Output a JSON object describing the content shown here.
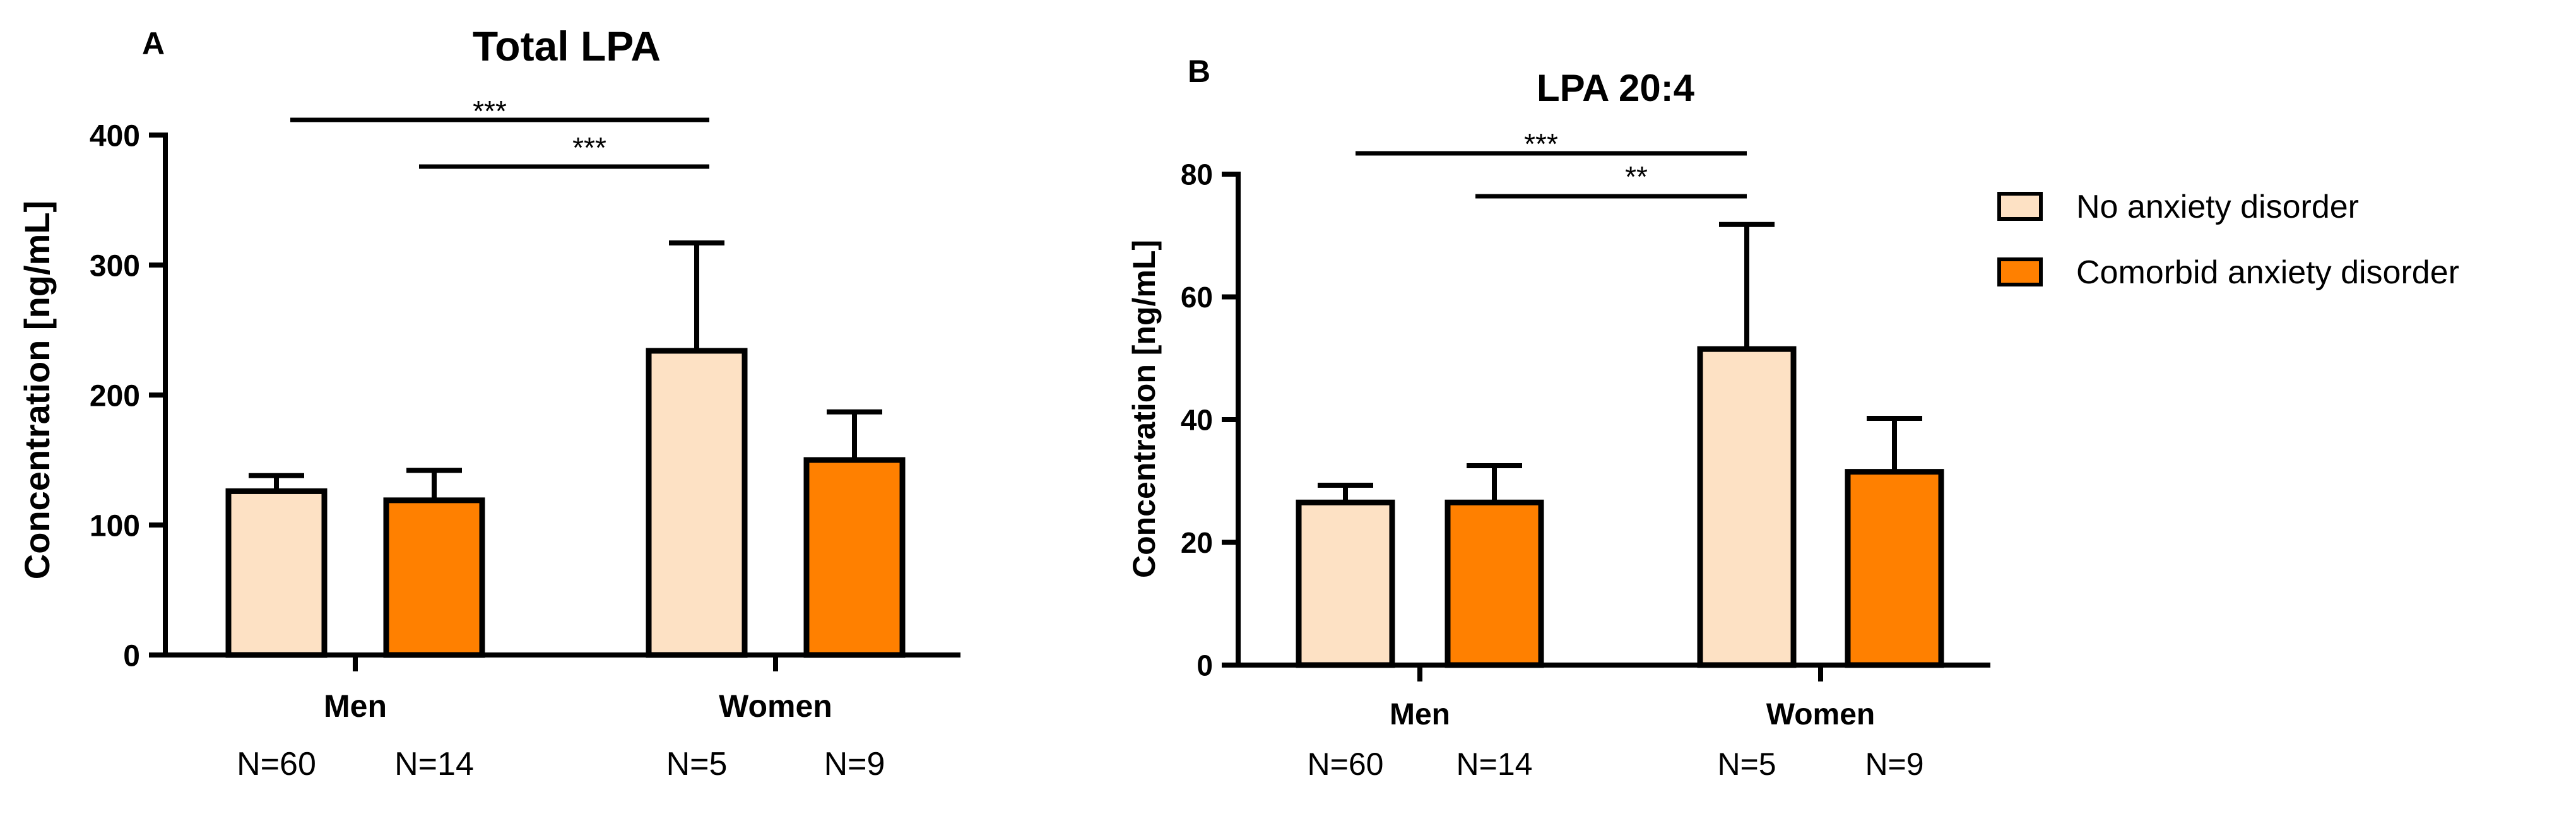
{
  "legend": [
    {
      "label": "No anxiety disorder",
      "color": "#FDE1C4"
    },
    {
      "label": "Comorbid anxiety disorder",
      "color": "#FF8000"
    }
  ],
  "chart_data": [
    {
      "type": "bar",
      "panel_label": "A",
      "title": "Total LPA",
      "ylabel": "Concentration [ng/mL]",
      "ylim": [
        0,
        400
      ],
      "yticks": [
        0,
        100,
        200,
        300,
        400
      ],
      "categories": [
        "Men",
        "Women"
      ],
      "series": [
        {
          "name": "No anxiety disorder",
          "color": "#FDE1C4",
          "values": [
            126,
            234
          ],
          "error": [
            12,
            83
          ],
          "n_labels": [
            "N=60",
            "N=5"
          ]
        },
        {
          "name": "Comorbid anxiety disorder",
          "color": "#FF8000",
          "values": [
            119,
            150
          ],
          "error": [
            23,
            37
          ],
          "n_labels": [
            "N=14",
            "N=9"
          ]
        }
      ],
      "significance": [
        {
          "from": [
            0,
            0
          ],
          "to": [
            1,
            0
          ],
          "label": "***"
        },
        {
          "from": [
            0,
            1
          ],
          "to": [
            1,
            0
          ],
          "label": "***"
        }
      ]
    },
    {
      "type": "bar",
      "panel_label": "B",
      "title": "LPA 20:4",
      "ylabel": "Concentration [ng/mL]",
      "ylim": [
        0,
        80
      ],
      "yticks": [
        0,
        20,
        40,
        60,
        80
      ],
      "categories": [
        "Men",
        "Women"
      ],
      "series": [
        {
          "name": "No anxiety disorder",
          "color": "#FDE1C4",
          "values": [
            26.5,
            51.5
          ],
          "error": [
            2.8,
            20.3
          ],
          "n_labels": [
            "N=60",
            "N=5"
          ]
        },
        {
          "name": "Comorbid anxiety disorder",
          "color": "#FF8000",
          "values": [
            26.5,
            31.5
          ],
          "error": [
            6.0,
            8.7
          ],
          "n_labels": [
            "N=14",
            "N=9"
          ]
        }
      ],
      "significance": [
        {
          "from": [
            0,
            0
          ],
          "to": [
            1,
            0
          ],
          "label": "***"
        },
        {
          "from": [
            0,
            1
          ],
          "to": [
            1,
            0
          ],
          "label": "**"
        }
      ]
    }
  ]
}
